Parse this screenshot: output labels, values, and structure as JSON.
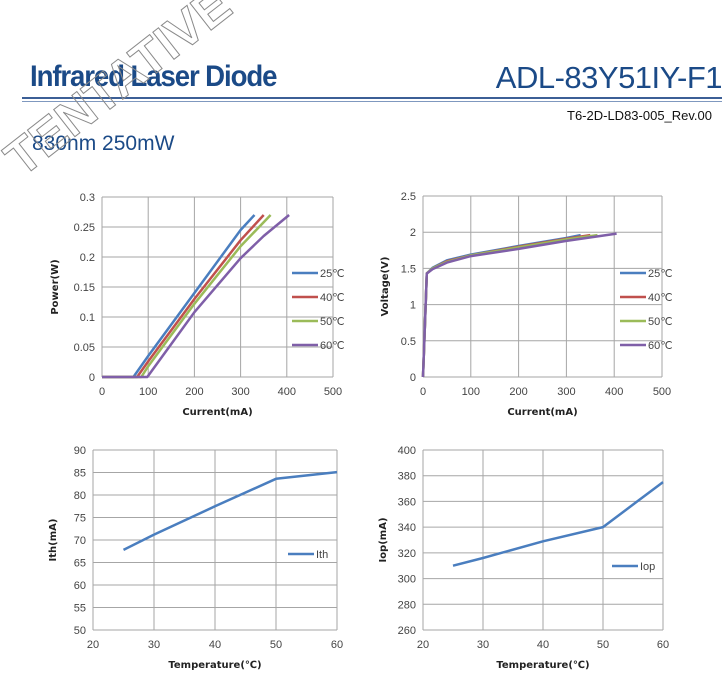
{
  "header": {
    "title": "Infrared Laser Diode",
    "model": "ADL-83Y51IY-F1",
    "doc_number": "T6-2D-LD83-005_Rev.00",
    "subtitle": "830nm 250mW",
    "watermark": "TENTATIVE",
    "accent_color": "#1b4a87"
  },
  "chart_data": [
    {
      "type": "line",
      "title": "",
      "xlabel": "Current(mA)",
      "ylabel": "Power(W)",
      "xlim": [
        0,
        500
      ],
      "ylim": [
        0,
        0.3
      ],
      "xticks": [
        0,
        100,
        200,
        300,
        400,
        500
      ],
      "xtick_labels": [
        "0",
        "100",
        "200",
        "300",
        "400",
        "500"
      ],
      "yticks": [
        0,
        0.05,
        0.1,
        0.15,
        0.2,
        0.25,
        0.3
      ],
      "ytick_labels": [
        "0",
        "0.05",
        "0.1",
        "0.15",
        "0.2",
        "0.25",
        "0.3"
      ],
      "grid": true,
      "legend": "right",
      "series": [
        {
          "name": "25℃",
          "color": "#4a7ebf",
          "x": [
            0,
            68,
            100,
            200,
            300,
            330
          ],
          "y": [
            0,
            0,
            0.035,
            0.14,
            0.245,
            0.27
          ]
        },
        {
          "name": "40℃",
          "color": "#c0504d",
          "x": [
            0,
            76,
            100,
            200,
            300,
            350
          ],
          "y": [
            0,
            0,
            0.026,
            0.13,
            0.228,
            0.27
          ]
        },
        {
          "name": "50℃",
          "color": "#9bbb59",
          "x": [
            0,
            85,
            100,
            200,
            300,
            365
          ],
          "y": [
            0,
            0,
            0.018,
            0.122,
            0.218,
            0.27
          ]
        },
        {
          "name": "60℃",
          "color": "#7f5fa8",
          "x": [
            0,
            98,
            150,
            200,
            300,
            350,
            405
          ],
          "y": [
            0,
            0,
            0.055,
            0.108,
            0.198,
            0.235,
            0.27
          ]
        }
      ]
    },
    {
      "type": "line",
      "title": "",
      "xlabel": "Current(mA)",
      "ylabel": "Voltage(V)",
      "xlim": [
        0,
        500
      ],
      "ylim": [
        0,
        2.5
      ],
      "xticks": [
        0,
        100,
        200,
        300,
        400,
        500
      ],
      "xtick_labels": [
        "0",
        "100",
        "200",
        "300",
        "400",
        "500"
      ],
      "yticks": [
        0,
        0.5,
        1,
        1.5,
        2,
        2.5
      ],
      "ytick_labels": [
        "0",
        "0.5",
        "1",
        "1.5",
        "2",
        "2.5"
      ],
      "grid": true,
      "legend": "right",
      "series": [
        {
          "name": "25℃",
          "color": "#4a7ebf",
          "x": [
            0,
            8,
            20,
            50,
            100,
            200,
            300,
            330
          ],
          "y": [
            0,
            1.43,
            1.51,
            1.61,
            1.69,
            1.81,
            1.92,
            1.96
          ]
        },
        {
          "name": "40℃",
          "color": "#c0504d",
          "x": [
            0,
            8,
            20,
            50,
            100,
            200,
            300,
            350
          ],
          "y": [
            0,
            1.43,
            1.5,
            1.6,
            1.68,
            1.8,
            1.91,
            1.96
          ]
        },
        {
          "name": "50℃",
          "color": "#9bbb59",
          "x": [
            0,
            8,
            20,
            50,
            100,
            200,
            300,
            365
          ],
          "y": [
            0,
            1.43,
            1.5,
            1.59,
            1.68,
            1.79,
            1.9,
            1.96
          ]
        },
        {
          "name": "60℃",
          "color": "#7f5fa8",
          "x": [
            0,
            8,
            20,
            50,
            100,
            200,
            300,
            405
          ],
          "y": [
            0,
            1.43,
            1.49,
            1.58,
            1.67,
            1.77,
            1.88,
            1.98
          ]
        }
      ]
    },
    {
      "type": "line",
      "title": "",
      "xlabel": "Temperature(℃)",
      "ylabel": "Ith(mA)",
      "xlim": [
        20,
        60
      ],
      "ylim": [
        50,
        90
      ],
      "xticks": [
        20,
        30,
        40,
        50,
        60
      ],
      "xtick_labels": [
        "20",
        "30",
        "40",
        "50",
        "60"
      ],
      "yticks": [
        50,
        55,
        60,
        65,
        70,
        75,
        80,
        85,
        90
      ],
      "ytick_labels": [
        "50",
        "55",
        "60",
        "65",
        "70",
        "75",
        "80",
        "85",
        "90"
      ],
      "grid": true,
      "legend": "right",
      "series": [
        {
          "name": "Ith",
          "color": "#4a7ebf",
          "x": [
            25,
            30,
            40,
            50,
            60
          ],
          "y": [
            67.8,
            71.2,
            77.5,
            83.6,
            85.1
          ]
        }
      ]
    },
    {
      "type": "line",
      "title": "",
      "xlabel": "Temperature(℃)",
      "ylabel": "Iop(mA)",
      "xlim": [
        20,
        60
      ],
      "ylim": [
        260,
        400
      ],
      "xticks": [
        20,
        30,
        40,
        50,
        60
      ],
      "xtick_labels": [
        "20",
        "30",
        "40",
        "50",
        "60"
      ],
      "yticks": [
        260,
        280,
        300,
        320,
        340,
        360,
        380,
        400
      ],
      "ytick_labels": [
        "260",
        "280",
        "300",
        "320",
        "340",
        "360",
        "380",
        "400"
      ],
      "grid": true,
      "legend": "right",
      "series": [
        {
          "name": "Iop",
          "color": "#4a7ebf",
          "x": [
            25,
            30,
            40,
            50,
            60
          ],
          "y": [
            310,
            316,
            329,
            340,
            375
          ]
        }
      ]
    }
  ]
}
